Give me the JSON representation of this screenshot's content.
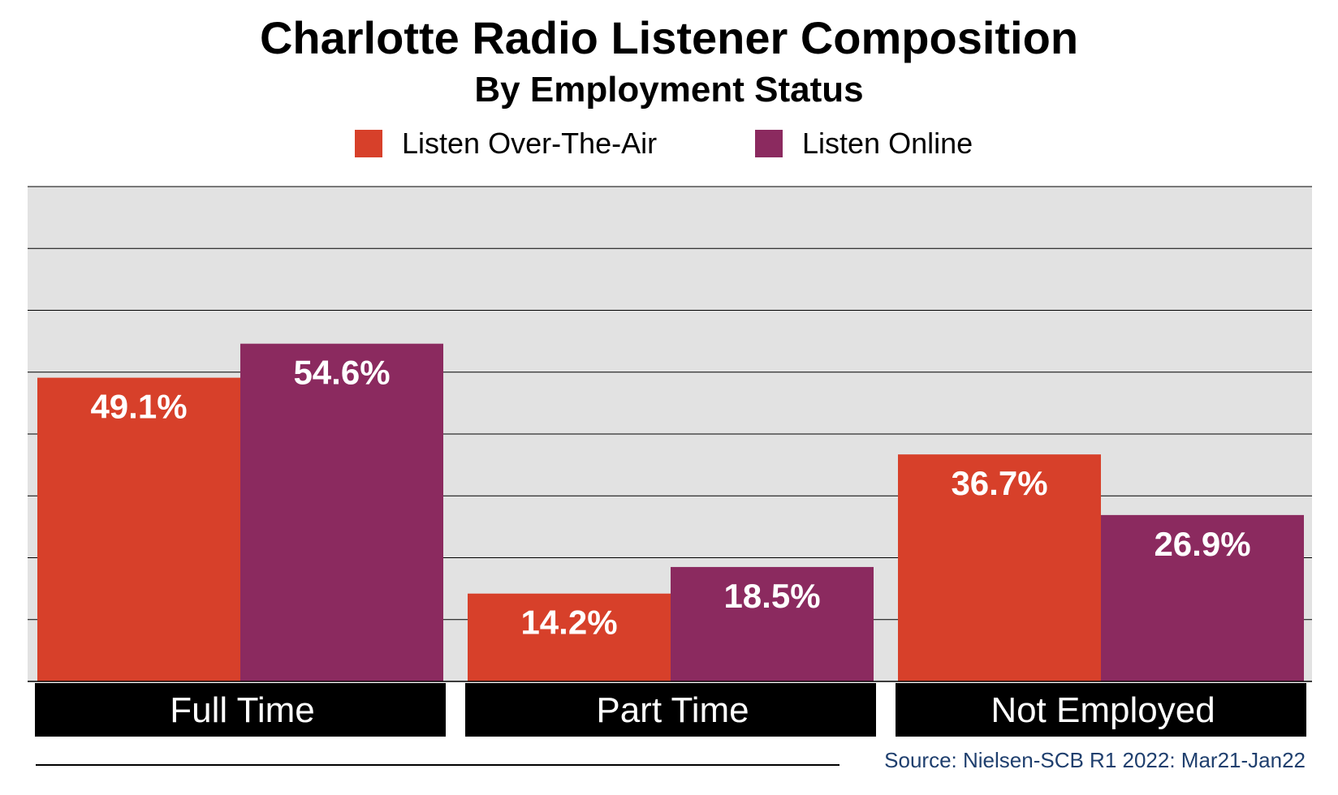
{
  "chart_data": {
    "type": "bar",
    "title": "Charlotte Radio Listener Composition",
    "subtitle": "By Employment Status",
    "categories": [
      "Full Time",
      "Part Time",
      "Not Employed"
    ],
    "series": [
      {
        "name": "Listen Over-The-Air",
        "values": [
          49.1,
          14.2,
          36.7
        ],
        "labels": [
          "49.1%",
          "14.2%",
          "36.7%"
        ],
        "color": "#d7402a"
      },
      {
        "name": "Listen Online",
        "values": [
          54.6,
          18.5,
          26.9
        ],
        "labels": [
          "54.6%",
          "18.5%",
          "26.9%"
        ],
        "color": "#8b2a5f"
      }
    ],
    "ylim": [
      0,
      80
    ],
    "gridlines": true,
    "plot_background": "#e2e2e2",
    "legend_position": "top-center",
    "source": "Source: Nielsen-SCB R1 2022: Mar21-Jan22"
  }
}
